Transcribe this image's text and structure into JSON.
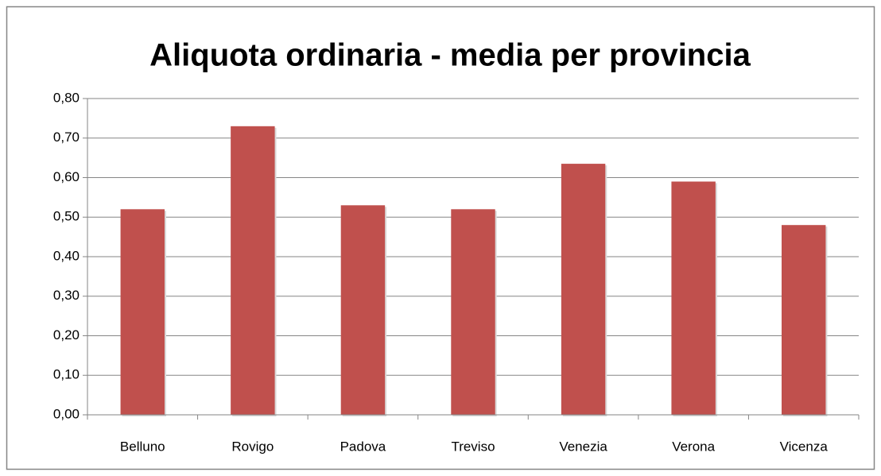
{
  "chart_data": {
    "type": "bar",
    "title": "Aliquota ordinaria - media per provincia",
    "categories": [
      "Belluno",
      "Rovigo",
      "Padova",
      "Treviso",
      "Venezia",
      "Verona",
      "Vicenza"
    ],
    "values": [
      0.52,
      0.73,
      0.53,
      0.52,
      0.635,
      0.59,
      0.48
    ],
    "color": "#c0504d",
    "ylim": [
      0,
      0.8
    ],
    "yticks": [
      {
        "value": 0,
        "label": "0,00"
      },
      {
        "value": 0.1,
        "label": "0,10"
      },
      {
        "value": 0.2,
        "label": "0,20"
      },
      {
        "value": 0.3,
        "label": "0,30"
      },
      {
        "value": 0.4,
        "label": "0,40"
      },
      {
        "value": 0.5,
        "label": "0,50"
      },
      {
        "value": 0.6,
        "label": "0,60"
      },
      {
        "value": 0.7,
        "label": "0,70"
      },
      {
        "value": 0.8,
        "label": "0,80"
      }
    ],
    "grid": true
  }
}
